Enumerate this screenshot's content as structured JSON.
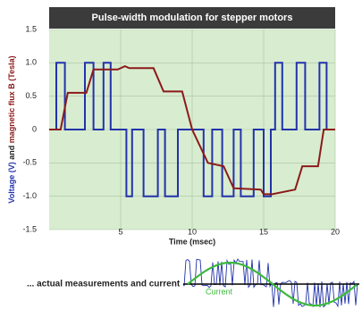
{
  "chart_data": {
    "type": "line",
    "title": "Pulse-width modulation for stepper motors",
    "xlabel": "Time (msec)",
    "ylabel_parts": [
      "Voltage (V)",
      " and ",
      "magnetic flux B (Tesla)"
    ],
    "ylabel_colors": [
      "#2233aa",
      "#222222",
      "#8b1a1a"
    ],
    "xlim": [
      0,
      20
    ],
    "xticks": [
      5,
      10,
      15,
      20
    ],
    "ylim": [
      -1.5,
      1.5
    ],
    "yticks": [
      -1.5,
      {
        "value": -1,
        "label": "-1.0"
      },
      -0.5,
      0,
      0.5,
      {
        "value": 1,
        "label": "1.0"
      },
      1.5
    ],
    "grid": true,
    "series": [
      {
        "color": "#2233aa",
        "x": [
          0,
          0.5,
          0.5,
          1.1,
          1.1,
          2.5,
          2.5,
          3.1,
          3.1,
          3.8,
          3.8,
          4.3,
          4.3,
          5.4,
          5.4,
          5.8,
          5.8,
          6.6,
          6.6,
          7.6,
          7.6,
          8.1,
          8.1,
          9,
          9,
          10.8,
          10.8,
          11.4,
          11.4,
          12.1,
          12.1,
          12.9,
          12.9,
          13.4,
          13.4,
          14.3,
          14.3,
          15,
          15,
          15.5,
          15.5,
          15.8,
          15.8,
          16.3,
          16.3,
          17.3,
          17.3,
          17.9,
          17.9,
          18.9,
          18.9,
          19.4,
          19.4,
          20
        ],
        "values": [
          0,
          0,
          1,
          1,
          0,
          0,
          1,
          1,
          0,
          0,
          1,
          1,
          0,
          0,
          -1,
          -1,
          0,
          0,
          -1,
          -1,
          0,
          0,
          -1,
          -1,
          0,
          0,
          -1,
          -1,
          0,
          0,
          -1,
          -1,
          0,
          0,
          -1,
          -1,
          0,
          0,
          -1,
          -1,
          0,
          0,
          1,
          1,
          0,
          0,
          1,
          1,
          0,
          0,
          1,
          1,
          0,
          0
        ]
      },
      {
        "color": "#8b1a1a",
        "x": [
          0,
          0.8,
          1.3,
          2.6,
          3.1,
          4.8,
          5.3,
          5.6,
          7.3,
          8,
          9.3,
          10,
          11.1,
          12.2,
          12.9,
          14.8,
          15,
          15.6,
          17.2,
          17.7,
          18.8,
          19.2,
          20
        ],
        "values": [
          0,
          0,
          0.55,
          0.55,
          0.9,
          0.9,
          0.95,
          0.92,
          0.92,
          0.57,
          0.57,
          0,
          -0.5,
          -0.55,
          -0.88,
          -0.9,
          -0.97,
          -0.97,
          -0.9,
          -0.55,
          -0.55,
          0,
          0
        ]
      }
    ],
    "annotations": [
      "... actual measurements and current",
      "Current"
    ]
  }
}
